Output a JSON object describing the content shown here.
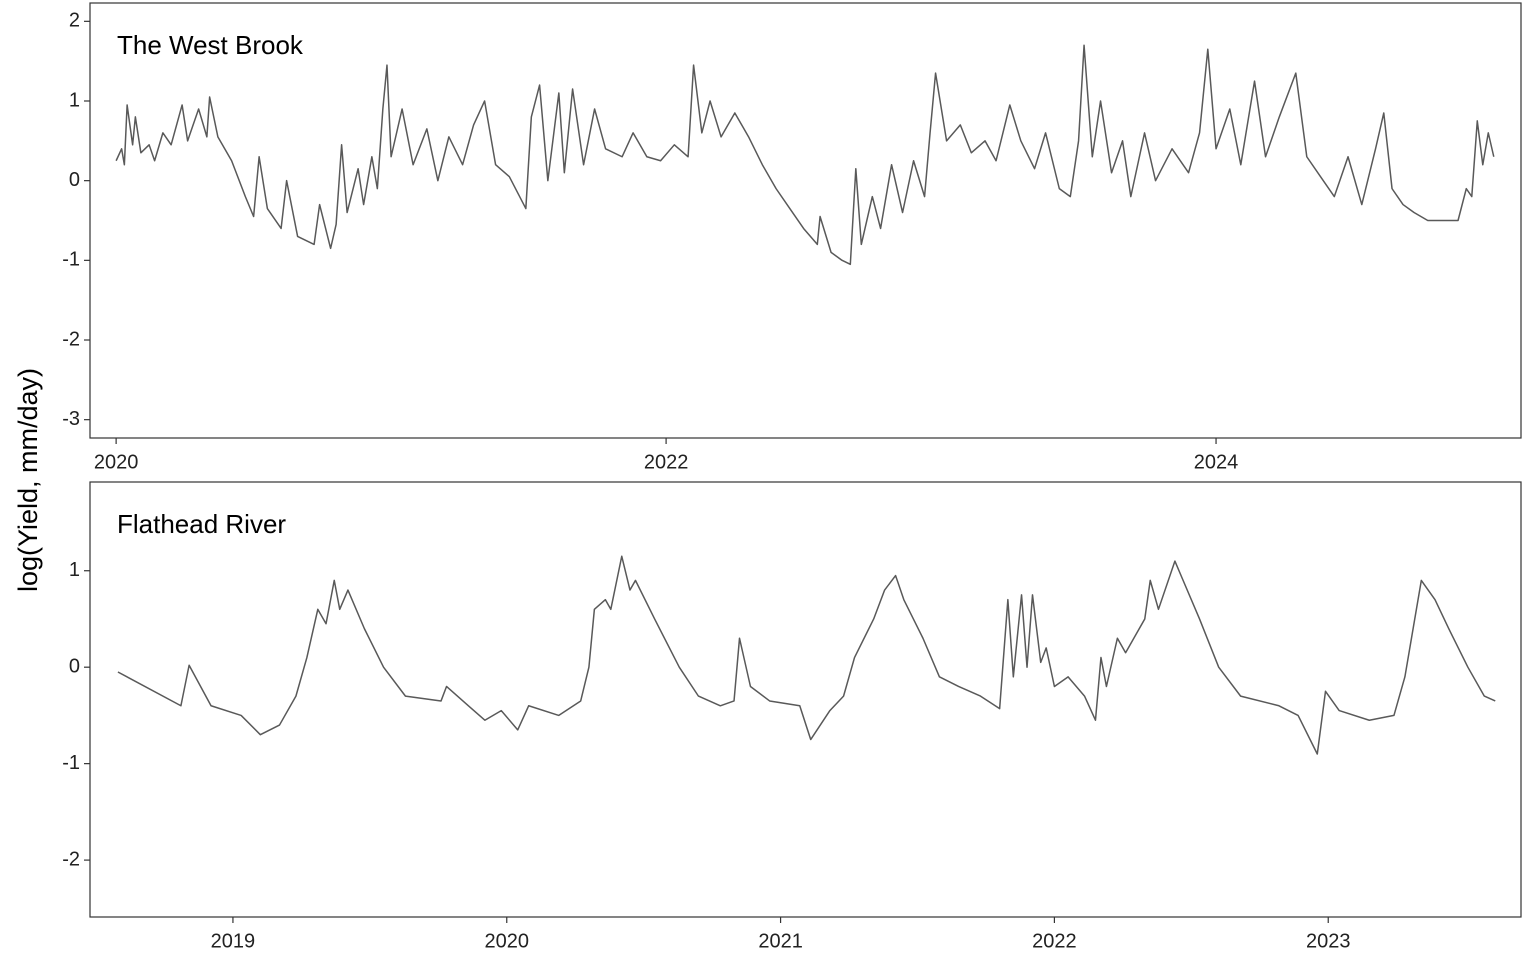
{
  "chart_data": [
    {
      "type": "line",
      "annotation": "The West Brook",
      "ylabel": "log(Yield, mm/day)",
      "xlim": [
        2019.905,
        2025.109
      ],
      "xticks": [
        2020,
        2022,
        2024
      ],
      "ylim": [
        -3.23,
        2.23
      ],
      "yticks": [
        -3,
        -2,
        -1,
        0,
        1,
        2
      ],
      "x": [
        2020.0,
        2020.02,
        2020.03,
        2020.04,
        2020.06,
        2020.07,
        2020.09,
        2020.12,
        2020.14,
        2020.17,
        2020.2,
        2020.24,
        2020.26,
        2020.3,
        2020.33,
        2020.34,
        2020.37,
        2020.42,
        2020.47,
        2020.5,
        2020.52,
        2020.55,
        2020.6,
        2020.62,
        2020.66,
        2020.72,
        2020.74,
        2020.78,
        2020.8,
        2020.82,
        2020.84,
        2020.88,
        2020.9,
        2020.93,
        2020.95,
        2020.97,
        2020.985,
        2021.0,
        2021.04,
        2021.08,
        2021.13,
        2021.17,
        2021.21,
        2021.26,
        2021.3,
        2021.34,
        2021.38,
        2021.43,
        2021.49,
        2021.51,
        2021.54,
        2021.57,
        2021.61,
        2021.63,
        2021.66,
        2021.7,
        2021.74,
        2021.78,
        2021.84,
        2021.88,
        2021.93,
        2021.98,
        2022.03,
        2022.08,
        2022.1,
        2022.13,
        2022.16,
        2022.2,
        2022.25,
        2022.3,
        2022.35,
        2022.4,
        2022.45,
        2022.5,
        2022.55,
        2022.56,
        2022.6,
        2022.64,
        2022.67,
        2022.69,
        2022.71,
        2022.75,
        2022.78,
        2022.82,
        2022.86,
        2022.9,
        2022.94,
        2022.96,
        2022.98,
        2023.02,
        2023.07,
        2023.11,
        2023.16,
        2023.2,
        2023.25,
        2023.29,
        2023.34,
        2023.38,
        2023.43,
        2023.47,
        2023.5,
        2023.52,
        2023.55,
        2023.58,
        2023.62,
        2023.66,
        2023.69,
        2023.74,
        2023.78,
        2023.84,
        2023.9,
        2023.94,
        2023.97,
        2024.0,
        2024.05,
        2024.09,
        2024.14,
        2024.18,
        2024.23,
        2024.29,
        2024.33,
        2024.38,
        2024.43,
        2024.48,
        2024.53,
        2024.58,
        2024.61,
        2024.64,
        2024.68,
        2024.72,
        2024.77,
        2024.82,
        2024.88,
        2024.91,
        2024.93,
        2024.95,
        2024.97,
        2024.99,
        2025.01
      ],
      "series": [
        {
          "color": "#595959",
          "values": [
            0.25,
            0.4,
            0.2,
            0.95,
            0.45,
            0.8,
            0.35,
            0.45,
            0.25,
            0.6,
            0.45,
            0.95,
            0.5,
            0.9,
            0.55,
            1.05,
            0.55,
            0.25,
            -0.2,
            -0.45,
            0.3,
            -0.35,
            -0.6,
            0.0,
            -0.7,
            -0.8,
            -0.3,
            -0.85,
            -0.55,
            0.45,
            -0.4,
            0.15,
            -0.3,
            0.3,
            -0.1,
            0.9,
            1.45,
            0.3,
            0.9,
            0.2,
            0.65,
            0.0,
            0.55,
            0.2,
            0.7,
            1.0,
            0.2,
            0.05,
            -0.35,
            0.8,
            1.2,
            0.0,
            1.1,
            0.1,
            1.15,
            0.2,
            0.9,
            0.4,
            0.3,
            0.6,
            0.3,
            0.25,
            0.45,
            0.3,
            1.45,
            0.6,
            1.0,
            0.55,
            0.85,
            0.55,
            0.2,
            -0.1,
            -0.35,
            -0.6,
            -0.8,
            -0.45,
            -0.9,
            -1.0,
            -1.05,
            0.15,
            -0.8,
            -0.2,
            -0.6,
            0.2,
            -0.4,
            0.25,
            -0.2,
            0.6,
            1.35,
            0.5,
            0.7,
            0.35,
            0.5,
            0.25,
            0.95,
            0.5,
            0.15,
            0.6,
            -0.1,
            -0.2,
            0.5,
            1.7,
            0.3,
            1.0,
            0.1,
            0.5,
            -0.2,
            0.6,
            0.0,
            0.4,
            0.1,
            0.6,
            1.65,
            0.4,
            0.9,
            0.2,
            1.25,
            0.3,
            0.8,
            1.35,
            0.3,
            0.05,
            -0.2,
            0.3,
            -0.3,
            0.4,
            0.85,
            -0.1,
            -0.3,
            -0.4,
            -0.5,
            -0.5,
            -0.5,
            -0.1,
            -0.2,
            0.75,
            0.2,
            0.6,
            0.3
          ]
        }
      ]
    },
    {
      "type": "line",
      "annotation": "Flathead River",
      "xlim": [
        2018.478,
        2023.704
      ],
      "xticks": [
        2019,
        2020,
        2021,
        2022,
        2023
      ],
      "ylim": [
        -2.59,
        1.92
      ],
      "yticks": [
        -2,
        -1,
        0,
        1
      ],
      "x": [
        2018.58,
        2018.81,
        2018.84,
        2018.92,
        2019.03,
        2019.1,
        2019.17,
        2019.23,
        2019.27,
        2019.31,
        2019.34,
        2019.37,
        2019.39,
        2019.42,
        2019.48,
        2019.55,
        2019.63,
        2019.76,
        2019.78,
        2019.86,
        2019.92,
        2019.98,
        2020.04,
        2020.08,
        2020.19,
        2020.27,
        2020.3,
        2020.32,
        2020.36,
        2020.38,
        2020.42,
        2020.45,
        2020.47,
        2020.54,
        2020.63,
        2020.7,
        2020.78,
        2020.83,
        2020.85,
        2020.89,
        2020.96,
        2021.07,
        2021.11,
        2021.18,
        2021.23,
        2021.27,
        2021.34,
        2021.38,
        2021.42,
        2021.45,
        2021.52,
        2021.58,
        2021.65,
        2021.73,
        2021.8,
        2021.83,
        2021.85,
        2021.88,
        2021.9,
        2021.92,
        2021.95,
        2021.97,
        2022.0,
        2022.05,
        2022.11,
        2022.15,
        2022.17,
        2022.19,
        2022.23,
        2022.26,
        2022.33,
        2022.35,
        2022.38,
        2022.44,
        2022.47,
        2022.53,
        2022.6,
        2022.68,
        2022.82,
        2022.89,
        2022.96,
        2022.99,
        2023.04,
        2023.15,
        2023.24,
        2023.28,
        2023.31,
        2023.34,
        2023.39,
        2023.44,
        2023.51,
        2023.57,
        2023.61
      ],
      "series": [
        {
          "color": "#595959",
          "values": [
            -0.05,
            -0.4,
            0.02,
            -0.4,
            -0.5,
            -0.7,
            -0.6,
            -0.3,
            0.1,
            0.6,
            0.45,
            0.9,
            0.6,
            0.8,
            0.4,
            0.0,
            -0.3,
            -0.35,
            -0.2,
            -0.4,
            -0.55,
            -0.45,
            -0.65,
            -0.4,
            -0.5,
            -0.35,
            0.0,
            0.6,
            0.7,
            0.6,
            1.15,
            0.8,
            0.9,
            0.5,
            0.0,
            -0.3,
            -0.4,
            -0.35,
            0.3,
            -0.2,
            -0.35,
            -0.4,
            -0.75,
            -0.45,
            -0.3,
            0.1,
            0.5,
            0.8,
            0.95,
            0.7,
            0.3,
            -0.1,
            -0.2,
            -0.3,
            -0.43,
            0.7,
            -0.1,
            0.75,
            0.0,
            0.75,
            0.05,
            0.2,
            -0.2,
            -0.1,
            -0.3,
            -0.55,
            0.1,
            -0.2,
            0.3,
            0.15,
            0.5,
            0.9,
            0.6,
            1.1,
            0.9,
            0.5,
            0.0,
            -0.3,
            -0.4,
            -0.5,
            -0.9,
            -0.25,
            -0.45,
            -0.55,
            -0.5,
            -0.1,
            0.4,
            0.9,
            0.7,
            0.4,
            0.0,
            -0.3,
            -0.35
          ]
        }
      ]
    }
  ]
}
